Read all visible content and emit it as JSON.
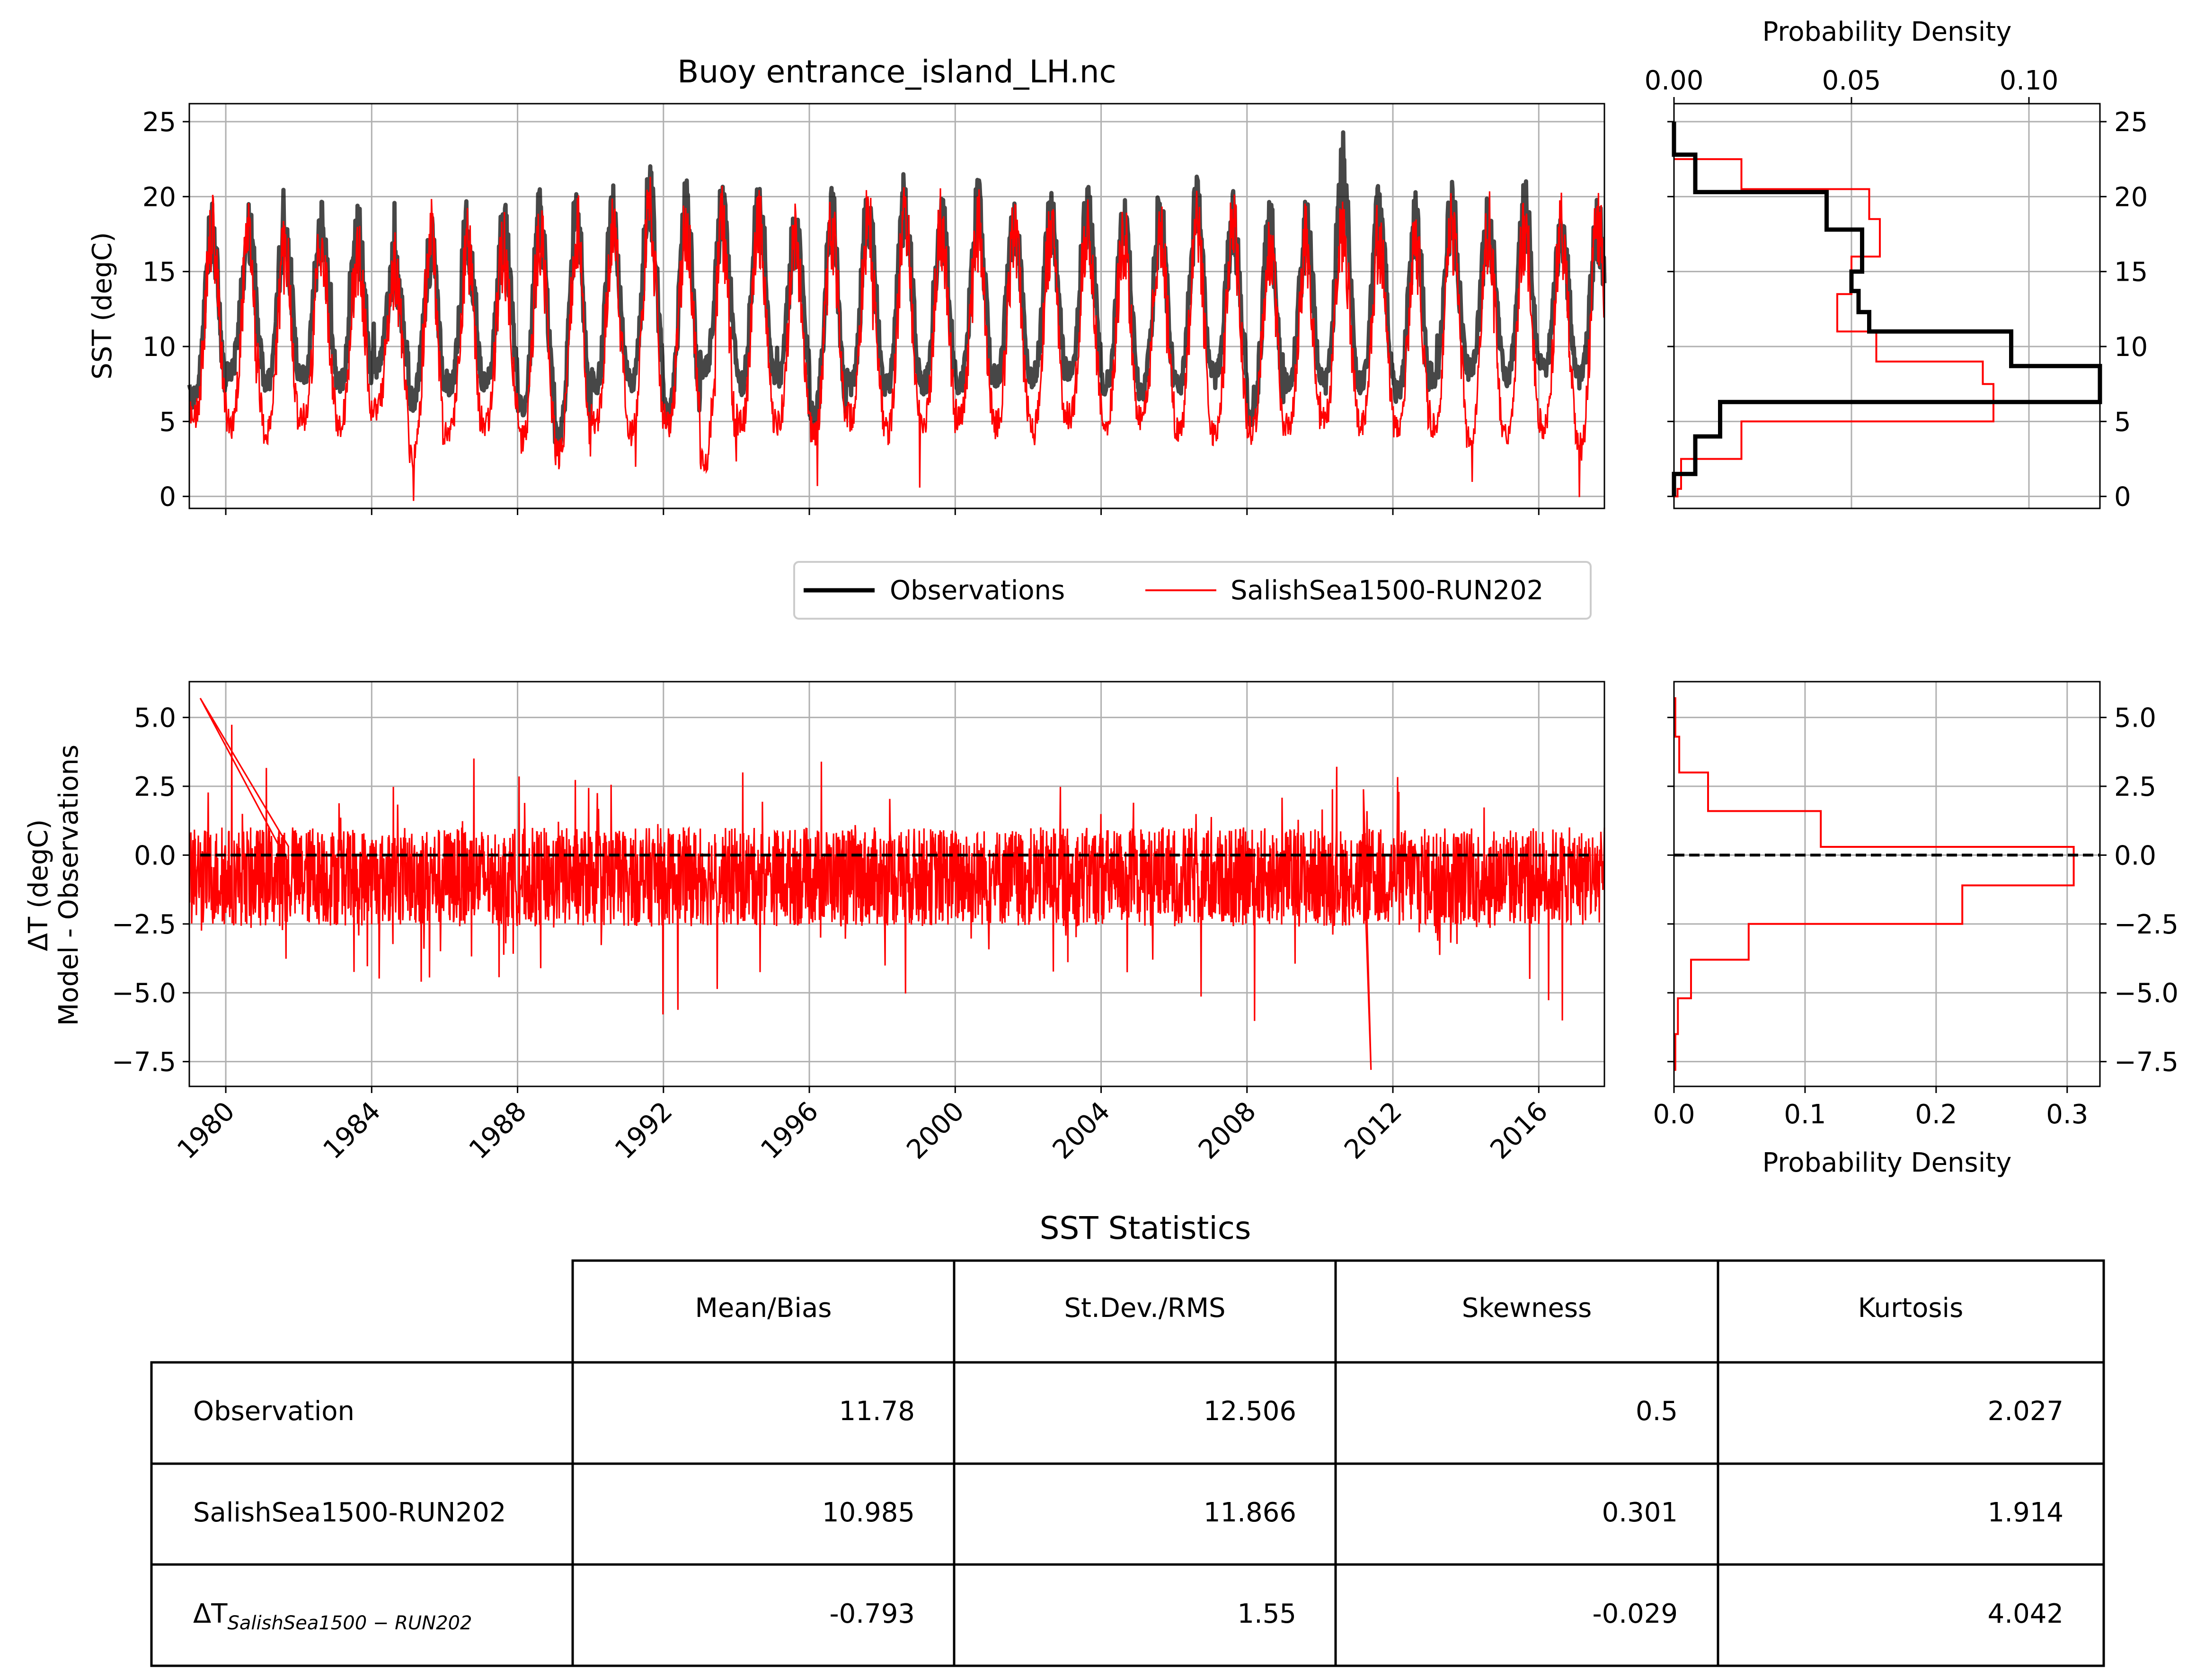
{
  "chart_data": [
    {
      "type": "line",
      "title": "Buoy entrance_island_LH.nc",
      "ylabel": "SST (degC)",
      "xlim": [
        1979.0,
        2017.8
      ],
      "ylim": [
        -0.8,
        26.2
      ],
      "yticks": [
        "0",
        "5",
        "10",
        "15",
        "20",
        "25"
      ],
      "grid": true,
      "series": [
        {
          "name": "Observations",
          "color": "#000000",
          "description_values": {
            "annual_min": [
              4.0,
              6.0,
              5.0,
              5.5,
              5.0,
              6.2,
              4.0,
              5.0,
              5.0,
              3.5,
              1.5,
              5.0,
              5.0,
              3.0,
              6.0,
              5.0,
              5.5,
              3.0,
              5.0,
              5.0,
              5.0,
              5.0,
              5.5,
              5.5,
              6.0,
              5.0,
              4.5,
              5.0,
              5.5,
              3.0,
              5.0,
              5.0,
              5.0,
              4.5,
              5.5,
              6.0,
              5.5,
              6.0,
              5.5
            ],
            "annual_max": [
              20.5,
              20.5,
              21.0,
              21.0,
              20.5,
              18.0,
              19.5,
              20.5,
              20.5,
              21.5,
              22.0,
              21.5,
              22.8,
              22.0,
              22.0,
              22.5,
              20.5,
              21.5,
              22.0,
              22.5,
              21.5,
              22.0,
              21.5,
              21.5,
              22.0,
              21.0,
              21.5,
              22.0,
              21.0,
              21.0,
              20.5,
              25.0,
              21.5,
              21.0,
              22.0,
              21.0,
              22.0,
              21.0,
              21.0
            ]
          }
        },
        {
          "name": "SalishSea1500-RUN202",
          "color": "#ff0000",
          "description_values": {
            "annual_min": [
              3.5,
              3.0,
              2.5,
              3.5,
              3.0,
              4.0,
              0.8,
              2.5,
              3.0,
              2.0,
              1.0,
              3.0,
              2.5,
              3.0,
              0.5,
              3.0,
              3.0,
              2.5,
              3.5,
              2.5,
              3.0,
              3.5,
              3.0,
              2.5,
              3.5,
              3.0,
              3.5,
              2.5,
              2.5,
              2.5,
              3.0,
              3.5,
              3.0,
              2.5,
              3.0,
              2.0,
              2.5,
              3.0,
              1.5
            ],
            "annual_max": [
              21.0,
              20.5,
              20.0,
              20.0,
              20.0,
              18.5,
              21.0,
              20.0,
              20.0,
              21.0,
              21.5,
              21.0,
              22.5,
              21.5,
              21.5,
              22.0,
              20.5,
              21.0,
              22.0,
              22.0,
              21.5,
              21.5,
              21.0,
              21.0,
              21.5,
              21.0,
              21.5,
              21.5,
              21.5,
              20.5,
              20.5,
              21.5,
              21.0,
              20.5,
              21.5,
              21.5,
              21.5,
              21.0,
              22.0
            ]
          }
        }
      ]
    },
    {
      "type": "histogram",
      "xlabel": "Probability Density",
      "xlim": [
        0.0,
        0.12
      ],
      "xticks": [
        "0.00",
        "0.05",
        "0.10"
      ],
      "ylim": [
        -0.8,
        26.2
      ],
      "yticks": [
        "0",
        "5",
        "10",
        "15",
        "20",
        "25"
      ],
      "orientation": "horizontal",
      "grid": true,
      "series": [
        {
          "name": "Observations",
          "color": "#000000",
          "bin_edges": [
            0.0,
            1.5,
            4.0,
            6.3,
            8.7,
            11.0,
            12.3,
            13.7,
            15.0,
            16.3,
            17.8,
            20.3,
            21.5,
            22.8,
            25.0
          ],
          "density": [
            0.0,
            0.006,
            0.013,
            0.12,
            0.095,
            0.055,
            0.052,
            0.05,
            0.053,
            0.053,
            0.043,
            0.006,
            0.006,
            0.0
          ]
        },
        {
          "name": "SalishSea1500-RUN202",
          "color": "#ff0000",
          "bin_edges": [
            0.0,
            0.5,
            2.5,
            5.0,
            7.5,
            9.0,
            11.0,
            13.5,
            16.0,
            18.5,
            20.5,
            22.5
          ],
          "density": [
            0.001,
            0.002,
            0.019,
            0.09,
            0.087,
            0.057,
            0.046,
            0.05,
            0.058,
            0.055,
            0.019
          ]
        }
      ]
    },
    {
      "type": "line",
      "ylabel": "ΔT (degC)",
      "ylabel2": "Model - Observations",
      "xlim": [
        1979.0,
        2017.8
      ],
      "xticks": [
        "1980",
        "1984",
        "1988",
        "1992",
        "1996",
        "2000",
        "2004",
        "2008",
        "2012",
        "2016"
      ],
      "ylim": [
        -8.4,
        6.3
      ],
      "yticks": [
        "−7.5",
        "−5.0",
        "−2.5",
        "0.0",
        "2.5",
        "5.0"
      ],
      "grid": true,
      "series": [
        {
          "name": "SalishSea1500-RUN202",
          "color": "#ff0000",
          "description_values": {
            "range_min": -7.8,
            "range_max": 5.7,
            "mean": -0.793
          }
        },
        {
          "name": "zero",
          "color": "#000000",
          "value": 0.0
        }
      ]
    },
    {
      "type": "histogram",
      "xlabel": "Probability Density",
      "xlim": [
        0.0,
        0.325
      ],
      "xticks": [
        "0.0",
        "0.1",
        "0.2",
        "0.3"
      ],
      "ylim": [
        -8.4,
        6.3
      ],
      "yticks": [
        "−7.5",
        "−5.0",
        "−2.5",
        "0.0",
        "2.5",
        "5.0"
      ],
      "orientation": "horizontal",
      "grid": true,
      "series": [
        {
          "name": "SalishSea1500-RUN202",
          "color": "#ff0000",
          "bin_edges": [
            -7.8,
            -6.5,
            -5.2,
            -3.8,
            -2.5,
            -1.1,
            0.3,
            1.6,
            3.0,
            4.3,
            5.7
          ],
          "density": [
            0.001,
            0.003,
            0.013,
            0.057,
            0.22,
            0.305,
            0.112,
            0.026,
            0.004,
            0.001
          ]
        },
        {
          "name": "zero",
          "color": "#000000",
          "value": 0.0
        }
      ]
    }
  ],
  "legend": {
    "entries": [
      {
        "label": "Observations",
        "color": "#000000"
      },
      {
        "label": "SalishSea1500-RUN202",
        "color": "#ff0000"
      }
    ]
  },
  "table": {
    "title": "SST Statistics",
    "headers": [
      "",
      "Mean/Bias",
      "St.Dev./RMS",
      "Skewness",
      "Kurtosis"
    ],
    "rows": [
      {
        "label": "Observation",
        "values": [
          "11.78",
          "12.506",
          "0.5",
          "2.027"
        ]
      },
      {
        "label": "SalishSea1500-RUN202",
        "values": [
          "10.985",
          "11.866",
          "0.301",
          "1.914"
        ]
      },
      {
        "label": "ΔT",
        "label_sub": "SalishSea1500 − RUN202",
        "values": [
          "-0.793",
          "1.55",
          "-0.029",
          "4.042"
        ]
      }
    ]
  }
}
